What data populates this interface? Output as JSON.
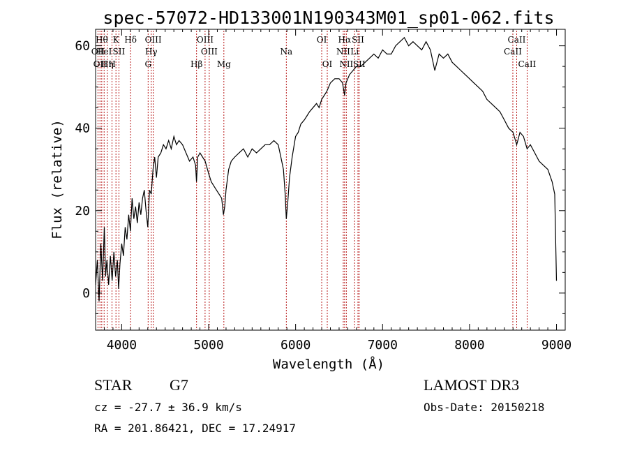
{
  "chart_data": {
    "type": "line",
    "title": "spec-57072-HD133001N190343M01_sp01-062.fits",
    "xlabel": "Wavelength (Å)",
    "ylabel": "Flux (relative)",
    "xlim": [
      3700,
      9100
    ],
    "ylim": [
      -9,
      64
    ],
    "xticks": [
      4000,
      5000,
      6000,
      7000,
      8000,
      9000
    ],
    "yticks": [
      0,
      20,
      40,
      60
    ],
    "grid": false,
    "series": [
      {
        "points": [
          [
            3700,
            2
          ],
          [
            3720,
            8
          ],
          [
            3740,
            -2
          ],
          [
            3760,
            12
          ],
          [
            3780,
            3
          ],
          [
            3800,
            16
          ],
          [
            3815,
            4
          ],
          [
            3830,
            8
          ],
          [
            3850,
            2
          ],
          [
            3870,
            9
          ],
          [
            3890,
            3
          ],
          [
            3910,
            10
          ],
          [
            3930,
            4
          ],
          [
            3950,
            8
          ],
          [
            3965,
            1
          ],
          [
            3980,
            7
          ],
          [
            4000,
            12
          ],
          [
            4020,
            9
          ],
          [
            4040,
            16
          ],
          [
            4060,
            13
          ],
          [
            4080,
            19
          ],
          [
            4100,
            15
          ],
          [
            4120,
            23
          ],
          [
            4140,
            18
          ],
          [
            4160,
            21
          ],
          [
            4180,
            17
          ],
          [
            4200,
            22
          ],
          [
            4220,
            19
          ],
          [
            4240,
            23
          ],
          [
            4260,
            25
          ],
          [
            4280,
            20
          ],
          [
            4300,
            16
          ],
          [
            4320,
            25
          ],
          [
            4340,
            24
          ],
          [
            4360,
            30
          ],
          [
            4380,
            33
          ],
          [
            4400,
            28
          ],
          [
            4420,
            33
          ],
          [
            4450,
            34
          ],
          [
            4480,
            36
          ],
          [
            4510,
            35
          ],
          [
            4540,
            37
          ],
          [
            4570,
            35
          ],
          [
            4600,
            38
          ],
          [
            4630,
            36
          ],
          [
            4660,
            37
          ],
          [
            4700,
            36
          ],
          [
            4740,
            34
          ],
          [
            4780,
            32
          ],
          [
            4820,
            33
          ],
          [
            4850,
            31
          ],
          [
            4860,
            27
          ],
          [
            4875,
            33
          ],
          [
            4900,
            34
          ],
          [
            4930,
            33
          ],
          [
            4960,
            32
          ],
          [
            5000,
            29
          ],
          [
            5030,
            27
          ],
          [
            5060,
            26
          ],
          [
            5090,
            25
          ],
          [
            5120,
            24
          ],
          [
            5150,
            23
          ],
          [
            5170,
            19
          ],
          [
            5185,
            21
          ],
          [
            5200,
            25
          ],
          [
            5230,
            30
          ],
          [
            5260,
            32
          ],
          [
            5300,
            33
          ],
          [
            5350,
            34
          ],
          [
            5400,
            35
          ],
          [
            5450,
            33
          ],
          [
            5500,
            35
          ],
          [
            5550,
            34
          ],
          [
            5600,
            35
          ],
          [
            5650,
            36
          ],
          [
            5700,
            36
          ],
          [
            5750,
            37
          ],
          [
            5800,
            36
          ],
          [
            5830,
            33
          ],
          [
            5860,
            30
          ],
          [
            5880,
            24
          ],
          [
            5893,
            18
          ],
          [
            5910,
            22
          ],
          [
            5930,
            28
          ],
          [
            5960,
            33
          ],
          [
            6000,
            38
          ],
          [
            6030,
            39
          ],
          [
            6060,
            41
          ],
          [
            6100,
            42
          ],
          [
            6130,
            43
          ],
          [
            6160,
            44
          ],
          [
            6200,
            45
          ],
          [
            6240,
            46
          ],
          [
            6270,
            45
          ],
          [
            6300,
            47
          ],
          [
            6330,
            48
          ],
          [
            6360,
            49
          ],
          [
            6400,
            51
          ],
          [
            6450,
            52
          ],
          [
            6500,
            52
          ],
          [
            6540,
            51
          ],
          [
            6563,
            48
          ],
          [
            6580,
            51
          ],
          [
            6620,
            53
          ],
          [
            6660,
            54
          ],
          [
            6700,
            55
          ],
          [
            6750,
            55
          ],
          [
            6800,
            56
          ],
          [
            6850,
            57
          ],
          [
            6900,
            58
          ],
          [
            6950,
            57
          ],
          [
            7000,
            59
          ],
          [
            7050,
            58
          ],
          [
            7100,
            58
          ],
          [
            7150,
            60
          ],
          [
            7200,
            61
          ],
          [
            7250,
            62
          ],
          [
            7300,
            60
          ],
          [
            7350,
            61
          ],
          [
            7400,
            60
          ],
          [
            7450,
            59
          ],
          [
            7500,
            61
          ],
          [
            7550,
            59
          ],
          [
            7600,
            54
          ],
          [
            7650,
            58
          ],
          [
            7700,
            57
          ],
          [
            7750,
            58
          ],
          [
            7800,
            56
          ],
          [
            7850,
            55
          ],
          [
            7900,
            54
          ],
          [
            7950,
            53
          ],
          [
            8000,
            52
          ],
          [
            8050,
            51
          ],
          [
            8100,
            50
          ],
          [
            8150,
            49
          ],
          [
            8200,
            47
          ],
          [
            8250,
            46
          ],
          [
            8300,
            45
          ],
          [
            8350,
            44
          ],
          [
            8400,
            42
          ],
          [
            8450,
            40
          ],
          [
            8500,
            39
          ],
          [
            8542,
            36
          ],
          [
            8580,
            39
          ],
          [
            8620,
            38
          ],
          [
            8662,
            35
          ],
          [
            8700,
            36
          ],
          [
            8750,
            34
          ],
          [
            8800,
            32
          ],
          [
            8850,
            31
          ],
          [
            8900,
            30
          ],
          [
            8950,
            27
          ],
          [
            8980,
            24
          ],
          [
            9000,
            3
          ]
        ]
      }
    ],
    "lines": [
      {
        "x": 3727,
        "label": "OII",
        "row": 2
      },
      {
        "x": 3750,
        "label": "OII",
        "row": 3
      },
      {
        "x": 3771,
        "label": "Hθ",
        "row": 1
      },
      {
        "x": 3798,
        "label": "HeI",
        "row": 2
      },
      {
        "x": 3835,
        "label": "Hη",
        "row": 3
      },
      {
        "x": 3889,
        "label": "H",
        "row": 3
      },
      {
        "x": 3934,
        "label": "K",
        "row": 1
      },
      {
        "x": 3968,
        "label": "SII",
        "row": 2
      },
      {
        "x": 4102,
        "label": "Hδ",
        "row": 1
      },
      {
        "x": 4304,
        "label": "G",
        "row": 3
      },
      {
        "x": 4340,
        "label": "Hγ",
        "row": 2
      },
      {
        "x": 4363,
        "label": "OIII",
        "row": 1
      },
      {
        "x": 4861,
        "label": "Hβ",
        "row": 3
      },
      {
        "x": 4959,
        "label": "OIII",
        "row": 1
      },
      {
        "x": 5007,
        "label": "OIII",
        "row": 2
      },
      {
        "x": 5175,
        "label": "Mg",
        "row": 3
      },
      {
        "x": 5893,
        "label": "Na",
        "row": 2
      },
      {
        "x": 6300,
        "label": "OI",
        "row": 1
      },
      {
        "x": 6364,
        "label": "OI",
        "row": 3
      },
      {
        "x": 6548,
        "label": "NII",
        "row": 2
      },
      {
        "x": 6563,
        "label": "Hα",
        "row": 1
      },
      {
        "x": 6583,
        "label": "NII",
        "row": 3
      },
      {
        "x": 6678,
        "label": "Li",
        "row": 2
      },
      {
        "x": 6717,
        "label": "SII",
        "row": 1
      },
      {
        "x": 6731,
        "label": "SII",
        "row": 3
      },
      {
        "x": 8498,
        "label": "CaII",
        "row": 2
      },
      {
        "x": 8542,
        "label": "CaII",
        "row": 1
      },
      {
        "x": 8662,
        "label": "CaII",
        "row": 3
      }
    ]
  },
  "info": {
    "class": "STAR",
    "subclass": "G7",
    "cz": "cz = -27.7 ± 36.9 km/s",
    "radec": "RA = 201.86421, DEC =  17.24917",
    "survey": "LAMOST DR3",
    "obsdate": "Obs-Date: 20150218"
  }
}
